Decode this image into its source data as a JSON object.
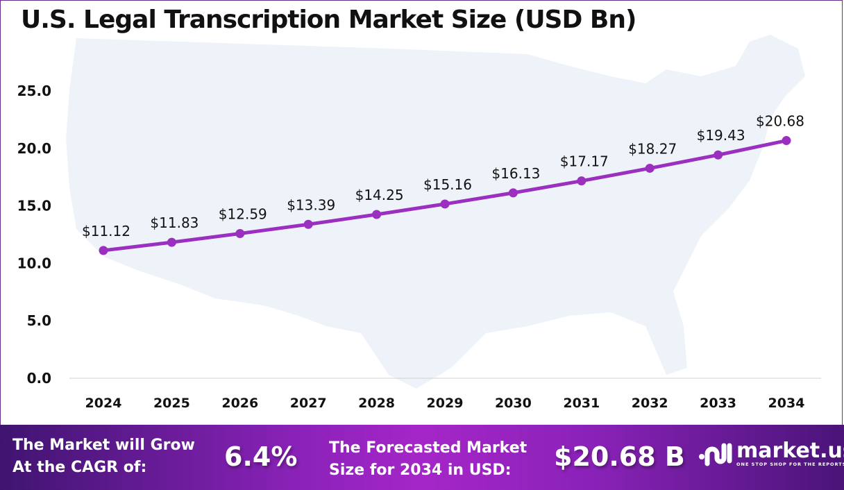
{
  "chart_data": {
    "type": "line",
    "title": "U.S. Legal Transcription Market Size (USD Bn)",
    "categories": [
      "2024",
      "2025",
      "2026",
      "2027",
      "2028",
      "2029",
      "2030",
      "2031",
      "2032",
      "2033",
      "2034"
    ],
    "values": [
      11.12,
      11.83,
      12.59,
      13.39,
      14.25,
      15.16,
      16.13,
      17.17,
      18.27,
      19.43,
      20.68
    ],
    "data_labels": [
      "$11.12",
      "$11.83",
      "$12.59",
      "$13.39",
      "$14.25",
      "$15.16",
      "$16.13",
      "$17.17",
      "$18.27",
      "$19.43",
      "$20.68"
    ],
    "y_ticks": [
      "0.0",
      "5.0",
      "10.0",
      "15.0",
      "20.0",
      "25.0"
    ],
    "ylim": [
      0,
      25
    ],
    "grid": false,
    "line_color": "#9b2fc0",
    "background_image": "us-map-silhouette"
  },
  "footer": {
    "cagr_label": [
      "The Market will Grow",
      "At the CAGR of:"
    ],
    "cagr_value": "6.4%",
    "forecast_label": [
      "The Forecasted Market",
      "Size for 2034 in USD:"
    ],
    "forecast_value": "$20.68 B",
    "logo_name": "market.us",
    "logo_tagline": "ONE STOP SHOP FOR THE REPORTS"
  }
}
